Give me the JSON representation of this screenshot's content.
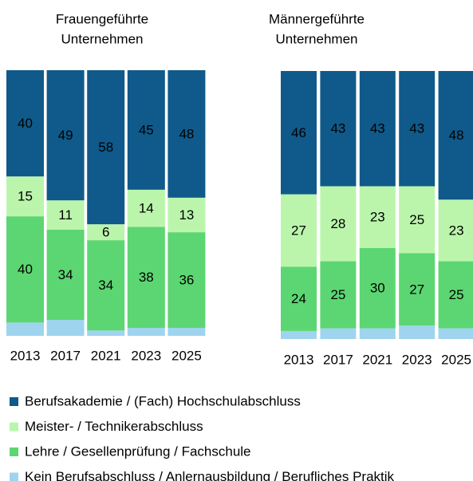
{
  "chart_data": [
    {
      "type": "stacked-bar",
      "title": [
        "Frauengeführte",
        "Unternehmen"
      ],
      "categories": [
        "2013",
        "2017",
        "2021",
        "2023",
        "2025"
      ],
      "ylim": [
        0,
        100
      ],
      "series": [
        {
          "name": "Berufsakademie / (Fach) Hochschulabschluss",
          "color": "#0f5a8a",
          "label_color": "#ffffff",
          "values": [
            40,
            49,
            58,
            45,
            48
          ]
        },
        {
          "name": "Meister- / Technikerabschluss",
          "color": "#bbf5ac",
          "label_color": "#000000",
          "values": [
            15,
            11,
            6,
            14,
            13
          ]
        },
        {
          "name": "Lehre / Gesellenprüfung / Fachschule",
          "color": "#5cd672",
          "label_color": "#000000",
          "values": [
            40,
            34,
            34,
            38,
            36
          ]
        },
        {
          "name": "Kein Berufsabschluss / Anlernausbildung / Berufliches Praktik",
          "color": "#9fd4ee",
          "show_labels": false,
          "values": [
            5,
            6,
            2,
            3,
            3
          ]
        }
      ]
    },
    {
      "type": "stacked-bar",
      "title": [
        "Männergeführte",
        "Unternehmen"
      ],
      "categories": [
        "2013",
        "2017",
        "2021",
        "2023",
        "2025"
      ],
      "ylim": [
        0,
        100
      ],
      "series": [
        {
          "values": [
            46,
            43,
            43,
            43,
            48
          ]
        },
        {
          "values": [
            27,
            28,
            23,
            25,
            23
          ]
        },
        {
          "values": [
            24,
            25,
            30,
            27,
            25
          ]
        },
        {
          "values": [
            3,
            4,
            4,
            5,
            4
          ]
        }
      ]
    }
  ]
}
